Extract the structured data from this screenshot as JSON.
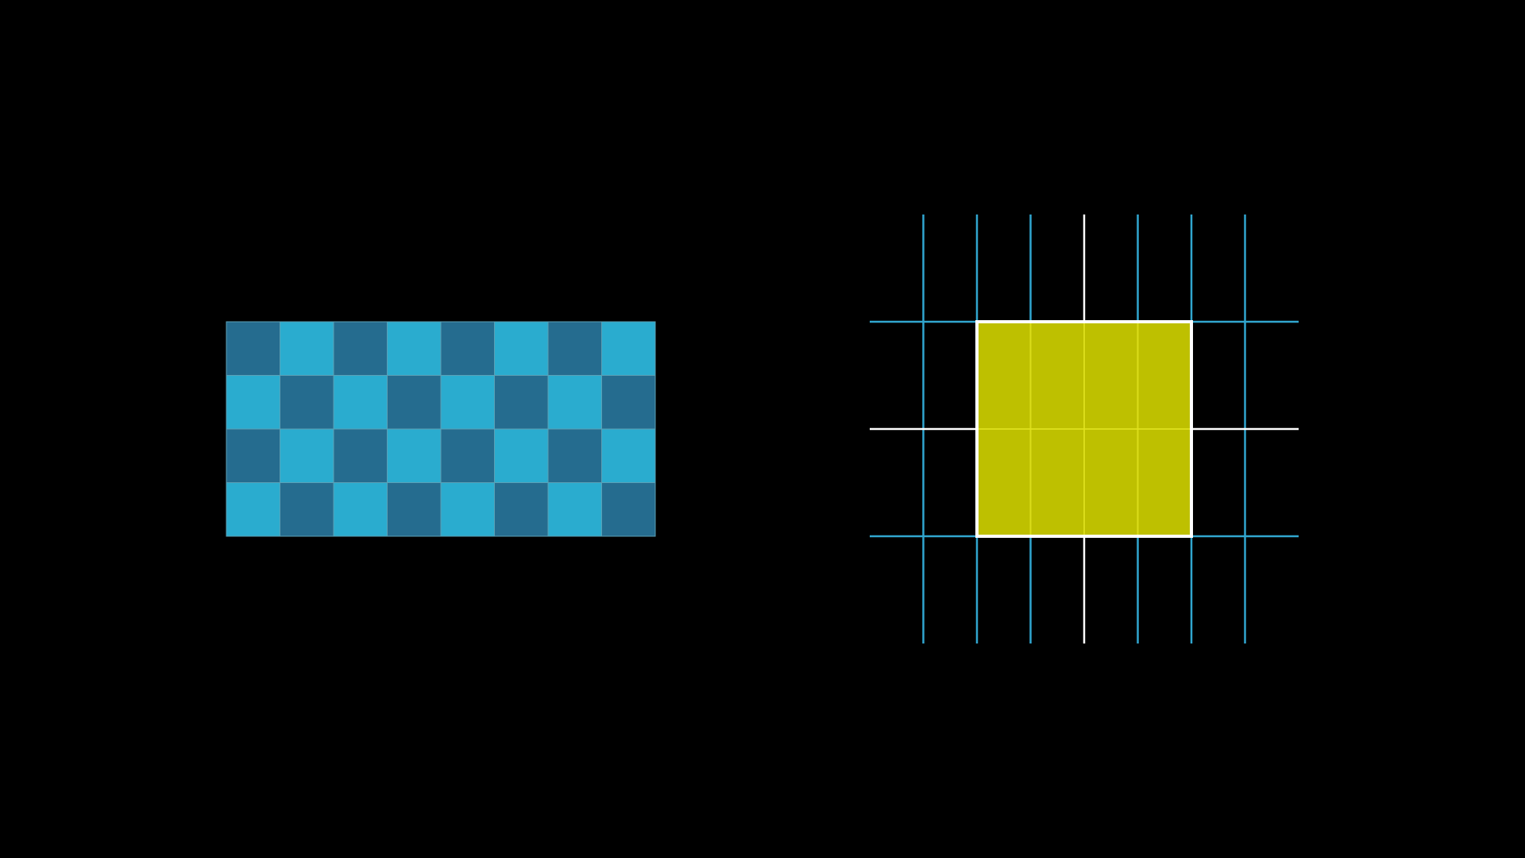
{
  "colors": {
    "background": "#000000",
    "tile_dark": "#256c8f",
    "tile_light": "#2aaccf",
    "tile_border": "#5aa0b6",
    "grid_line": "#31a6cf",
    "axis_line": "#ffffff",
    "highlight_fill": "#bec000",
    "highlight_inner_line": "#e0e21f",
    "highlight_border": "#ffffff"
  },
  "checkerboard": {
    "rows": 4,
    "cols": 8,
    "first_tile": "dark"
  },
  "grid_diagram": {
    "vertical_lines": 7,
    "horizontal_lines": 3,
    "axis_vertical_index": 3,
    "axis_horizontal_index": 1,
    "highlight": {
      "col_start": 1,
      "col_end": 5,
      "row_start": 0,
      "row_end": 2
    }
  }
}
